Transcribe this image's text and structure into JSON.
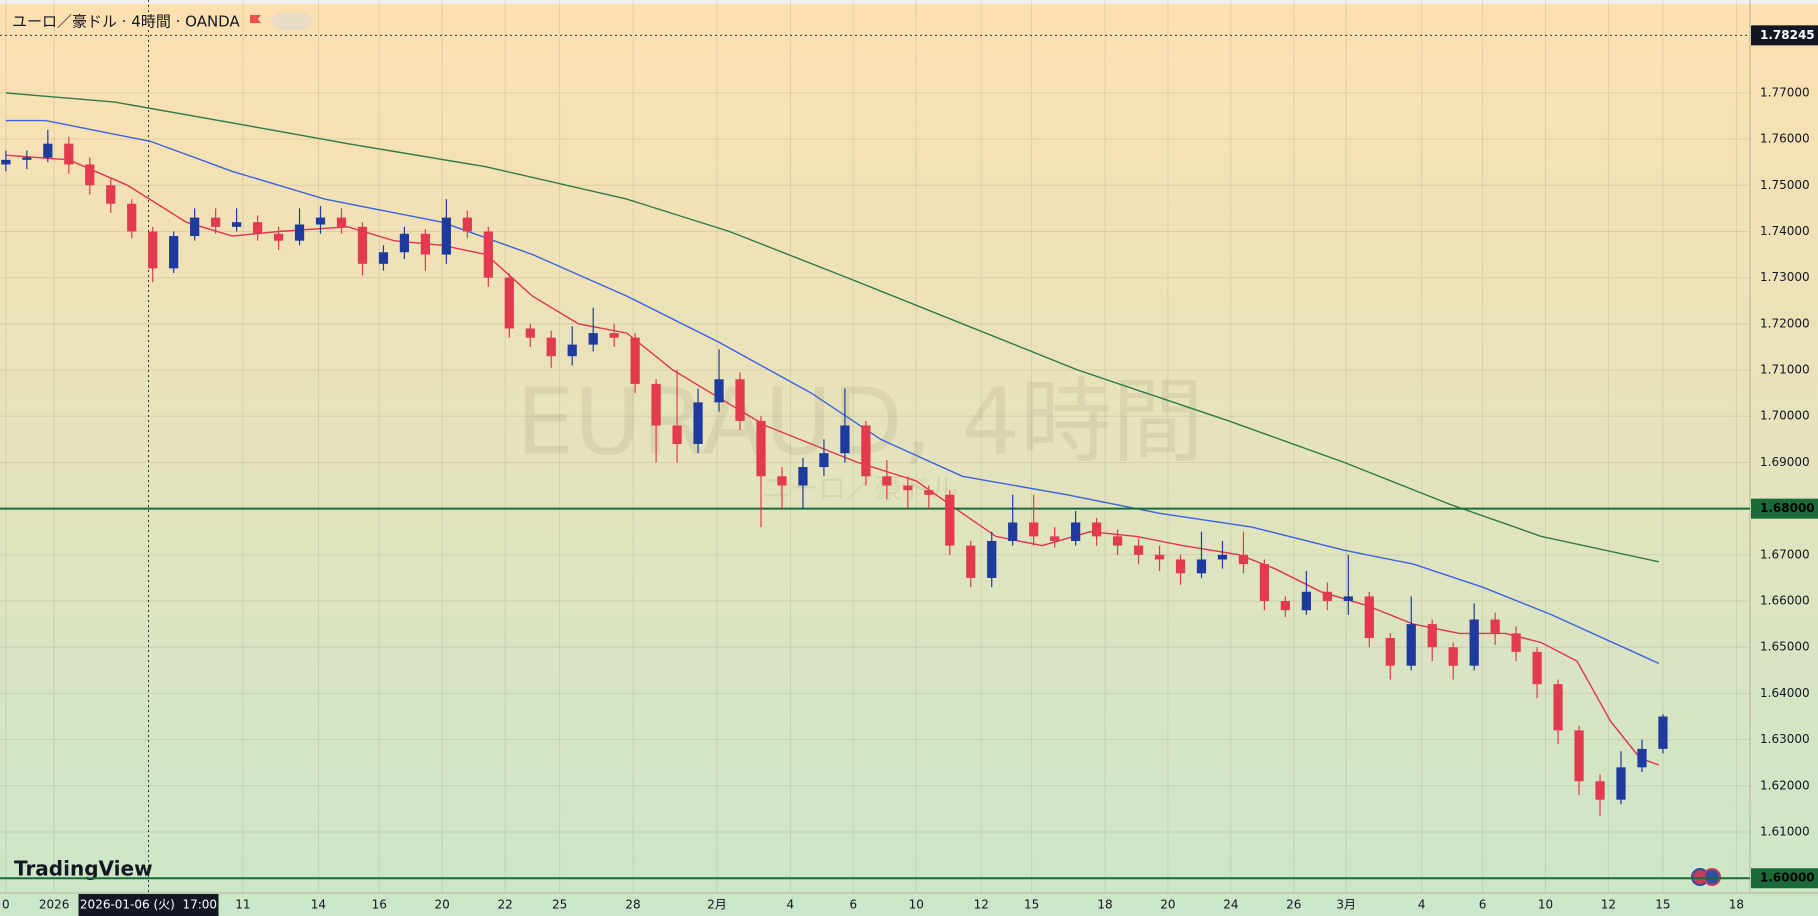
{
  "chart_data": {
    "type": "candlestick",
    "title": "ユーロ／豪ドル · 4時間 · OANDA",
    "watermark": "EURAUD, 4時間",
    "watermark_sub": "ユーロ／豪ドル",
    "brand": "TradingView",
    "crosshair": {
      "x": 6.8,
      "label": "2026-01-06 (火)  17:00"
    },
    "up_color": "#1f3a9e",
    "down_color": "#e23a4f",
    "grid": true,
    "xlim": [
      -0.28,
      83.15
    ],
    "ylim": [
      1.5968,
      1.7901
    ],
    "xticks": [
      {
        "value": 0,
        "label": "0"
      },
      {
        "value": 2.3,
        "label": "2026"
      },
      {
        "value": 11.3,
        "label": "11"
      },
      {
        "value": 14.9,
        "label": "14"
      },
      {
        "value": 17.8,
        "label": "16"
      },
      {
        "value": 20.8,
        "label": "20"
      },
      {
        "value": 23.8,
        "label": "22"
      },
      {
        "value": 26.4,
        "label": "25"
      },
      {
        "value": 29.9,
        "label": "28"
      },
      {
        "value": 33.9,
        "label": "2月"
      },
      {
        "value": 37.4,
        "label": "4"
      },
      {
        "value": 40.4,
        "label": "6"
      },
      {
        "value": 43.4,
        "label": "10"
      },
      {
        "value": 46.5,
        "label": "12"
      },
      {
        "value": 48.9,
        "label": "15"
      },
      {
        "value": 52.4,
        "label": "18"
      },
      {
        "value": 55.4,
        "label": "20"
      },
      {
        "value": 58.4,
        "label": "24"
      },
      {
        "value": 61.4,
        "label": "26"
      },
      {
        "value": 63.9,
        "label": "3月"
      },
      {
        "value": 67.5,
        "label": "4"
      },
      {
        "value": 70.4,
        "label": "6"
      },
      {
        "value": 73.4,
        "label": "10"
      },
      {
        "value": 76.4,
        "label": "12"
      },
      {
        "value": 79.0,
        "label": "15"
      },
      {
        "value": 82.5,
        "label": "18"
      }
    ],
    "yticks": [
      {
        "value": 1.61,
        "label": "1.61000"
      },
      {
        "value": 1.62,
        "label": "1.62000"
      },
      {
        "value": 1.63,
        "label": "1.63000"
      },
      {
        "value": 1.64,
        "label": "1.64000"
      },
      {
        "value": 1.65,
        "label": "1.65000"
      },
      {
        "value": 1.66,
        "label": "1.66000"
      },
      {
        "value": 1.67,
        "label": "1.67000"
      },
      {
        "value": 1.69,
        "label": "1.69000"
      },
      {
        "value": 1.7,
        "label": "1.70000"
      },
      {
        "value": 1.71,
        "label": "1.71000"
      },
      {
        "value": 1.72,
        "label": "1.72000"
      },
      {
        "value": 1.73,
        "label": "1.73000"
      },
      {
        "value": 1.74,
        "label": "1.74000"
      },
      {
        "value": 1.75,
        "label": "1.75000"
      },
      {
        "value": 1.76,
        "label": "1.76000"
      },
      {
        "value": 1.77,
        "label": "1.77000"
      }
    ],
    "hlines": [
      {
        "value": 1.68,
        "label": "1.68000",
        "color": "#1b6b3a"
      },
      {
        "value": 1.6,
        "label": "1.60000",
        "color": "#1b6b3a"
      }
    ],
    "price_marker": {
      "value": 1.78245,
      "label": "1.78245"
    },
    "open": [
      1.7545,
      1.7555,
      1.756,
      1.759,
      1.7545,
      1.75,
      1.746,
      1.74,
      1.732,
      1.739,
      1.743,
      1.741,
      1.742,
      1.7395,
      1.738,
      1.7415,
      1.743,
      1.741,
      1.733,
      1.7355,
      1.7395,
      1.735,
      1.743,
      1.74,
      1.73,
      1.719,
      1.717,
      1.713,
      1.7155,
      1.718,
      1.717,
      1.707,
      1.698,
      1.694,
      1.703,
      1.708,
      1.699,
      1.687,
      1.685,
      1.689,
      1.692,
      1.698,
      1.687,
      1.685,
      1.684,
      1.683,
      1.672,
      1.665,
      1.673,
      1.677,
      1.674,
      1.673,
      1.677,
      1.674,
      1.672,
      1.67,
      1.669,
      1.666,
      1.669,
      1.67,
      1.668,
      1.66,
      1.658,
      1.662,
      1.66,
      1.661,
      1.652,
      1.646,
      1.655,
      1.65,
      1.646,
      1.656,
      1.653,
      1.649,
      1.642,
      1.632,
      1.621,
      1.617,
      1.624,
      1.628
    ],
    "high": [
      1.7575,
      1.7575,
      1.762,
      1.7605,
      1.756,
      1.7515,
      1.747,
      1.741,
      1.74,
      1.745,
      1.745,
      1.745,
      1.7435,
      1.741,
      1.745,
      1.7455,
      1.745,
      1.742,
      1.737,
      1.741,
      1.7405,
      1.747,
      1.7445,
      1.741,
      1.731,
      1.72,
      1.7185,
      1.7195,
      1.7235,
      1.72,
      1.718,
      1.708,
      1.71,
      1.706,
      1.7145,
      1.7095,
      1.7,
      1.689,
      1.691,
      1.695,
      1.706,
      1.699,
      1.6905,
      1.687,
      1.685,
      1.684,
      1.673,
      1.675,
      1.683,
      1.683,
      1.676,
      1.6795,
      1.678,
      1.6755,
      1.6735,
      1.672,
      1.67,
      1.675,
      1.673,
      1.675,
      1.669,
      1.661,
      1.6665,
      1.664,
      1.67,
      1.662,
      1.653,
      1.661,
      1.656,
      1.651,
      1.6595,
      1.6575,
      1.6545,
      1.65,
      1.643,
      1.633,
      1.6225,
      1.6275,
      1.63,
      1.6355
    ],
    "low": [
      1.753,
      1.7535,
      1.755,
      1.7525,
      1.748,
      1.744,
      1.7385,
      1.729,
      1.731,
      1.738,
      1.7395,
      1.74,
      1.738,
      1.736,
      1.737,
      1.7395,
      1.7395,
      1.7305,
      1.7315,
      1.734,
      1.7315,
      1.733,
      1.7385,
      1.728,
      1.717,
      1.715,
      1.7105,
      1.711,
      1.714,
      1.715,
      1.705,
      1.69,
      1.69,
      1.692,
      1.701,
      1.697,
      1.676,
      1.68,
      1.68,
      1.687,
      1.69,
      1.685,
      1.682,
      1.68,
      1.68,
      1.67,
      1.663,
      1.663,
      1.672,
      1.672,
      1.6715,
      1.672,
      1.672,
      1.67,
      1.668,
      1.6665,
      1.6635,
      1.665,
      1.667,
      1.666,
      1.658,
      1.6565,
      1.657,
      1.658,
      1.657,
      1.65,
      1.643,
      1.645,
      1.647,
      1.643,
      1.645,
      1.6505,
      1.647,
      1.639,
      1.629,
      1.618,
      1.6135,
      1.616,
      1.623,
      1.627
    ],
    "close": [
      1.7555,
      1.756,
      1.759,
      1.7545,
      1.75,
      1.746,
      1.74,
      1.732,
      1.739,
      1.743,
      1.741,
      1.742,
      1.7395,
      1.738,
      1.7415,
      1.743,
      1.741,
      1.733,
      1.7355,
      1.7395,
      1.735,
      1.743,
      1.74,
      1.73,
      1.719,
      1.717,
      1.713,
      1.7155,
      1.718,
      1.717,
      1.707,
      1.698,
      1.694,
      1.703,
      1.708,
      1.699,
      1.687,
      1.685,
      1.689,
      1.692,
      1.698,
      1.687,
      1.685,
      1.684,
      1.683,
      1.672,
      1.665,
      1.673,
      1.677,
      1.674,
      1.673,
      1.677,
      1.674,
      1.672,
      1.67,
      1.669,
      1.666,
      1.669,
      1.67,
      1.668,
      1.66,
      1.658,
      1.662,
      1.66,
      1.661,
      1.652,
      1.646,
      1.655,
      1.65,
      1.646,
      1.656,
      1.653,
      1.649,
      1.642,
      1.632,
      1.621,
      1.617,
      1.624,
      1.628,
      1.635
    ],
    "lines": [
      {
        "color": "#e0344f",
        "x": [
          0,
          3.0,
          5.8,
          8.6,
          10.8,
          13.0,
          16.3,
          18.5,
          20.8,
          22.9,
          25.1,
          27.3,
          29.6,
          31.8,
          34.0,
          36.2,
          38.4,
          40.6,
          43.4,
          45.6,
          47.2,
          49.4,
          51.7,
          53.9,
          56.1,
          58.8,
          60.5,
          62.7,
          64.9,
          67.1,
          69.3,
          71.5,
          73.2,
          74.9,
          76.5,
          77.9,
          78.8
        ],
        "values": [
          1.7565,
          1.7555,
          1.75,
          1.742,
          1.739,
          1.74,
          1.741,
          1.738,
          1.737,
          1.735,
          1.726,
          1.72,
          1.718,
          1.71,
          1.704,
          1.698,
          1.694,
          1.69,
          1.686,
          1.679,
          1.674,
          1.672,
          1.675,
          1.674,
          1.672,
          1.67,
          1.667,
          1.662,
          1.659,
          1.655,
          1.653,
          1.653,
          1.651,
          1.647,
          1.634,
          1.626,
          1.6245
        ]
      },
      {
        "color": "#3b63e0",
        "x": [
          0,
          1.9,
          6.9,
          10.8,
          15.2,
          20.8,
          25.1,
          29.6,
          34.0,
          38.4,
          41.7,
          45.6,
          50.6,
          55.0,
          59.4,
          63.8,
          67.1,
          70.4,
          73.7,
          77.1,
          78.8
        ],
        "values": [
          1.764,
          1.764,
          1.7595,
          1.753,
          1.747,
          1.742,
          1.735,
          1.726,
          1.716,
          1.705,
          1.695,
          1.687,
          1.683,
          1.679,
          1.676,
          1.671,
          1.668,
          1.663,
          1.657,
          1.65,
          1.6465
        ]
      },
      {
        "color": "#2f7a48",
        "x": [
          0,
          5.2,
          10.8,
          16.3,
          22.9,
          29.6,
          34.5,
          40.1,
          45.6,
          51.1,
          58.3,
          63.8,
          68.8,
          73.2,
          78.8
        ],
        "values": [
          1.77,
          1.768,
          1.7635,
          1.759,
          1.754,
          1.747,
          1.74,
          1.73,
          1.72,
          1.71,
          1.699,
          1.69,
          1.681,
          1.674,
          1.6685
        ]
      }
    ]
  }
}
